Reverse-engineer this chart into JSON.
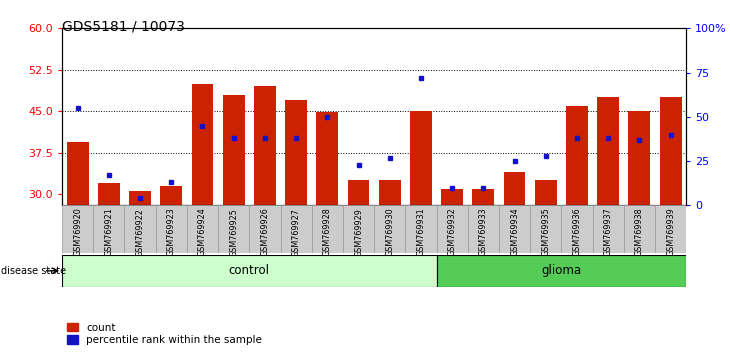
{
  "title": "GDS5181 / 10073",
  "samples": [
    "GSM769920",
    "GSM769921",
    "GSM769922",
    "GSM769923",
    "GSM769924",
    "GSM769925",
    "GSM769926",
    "GSM769927",
    "GSM769928",
    "GSM769929",
    "GSM769930",
    "GSM769931",
    "GSM769932",
    "GSM769933",
    "GSM769934",
    "GSM769935",
    "GSM769936",
    "GSM769937",
    "GSM769938",
    "GSM769939"
  ],
  "bar_values": [
    39.5,
    32.0,
    30.5,
    31.5,
    50.0,
    48.0,
    49.5,
    47.0,
    44.8,
    32.5,
    32.5,
    45.0,
    31.0,
    31.0,
    34.0,
    32.5,
    46.0,
    47.5,
    45.0,
    47.5
  ],
  "blue_pct": [
    55,
    17,
    4,
    13,
    45,
    38,
    38,
    38,
    50,
    23,
    27,
    72,
    10,
    10,
    25,
    28,
    38,
    38,
    37,
    40
  ],
  "control_count": 12,
  "glioma_count": 8,
  "ylim_left": [
    28,
    60
  ],
  "ylim_right": [
    0,
    100
  ],
  "yticks_left": [
    30,
    37.5,
    45,
    52.5,
    60
  ],
  "yticks_right": [
    0,
    25,
    50,
    75,
    100
  ],
  "bar_color": "#cc2200",
  "blue_color": "#1111cc",
  "control_color": "#ccffcc",
  "glioma_color": "#55cc55",
  "title_fontsize": 10,
  "tick_fontsize": 6.5
}
